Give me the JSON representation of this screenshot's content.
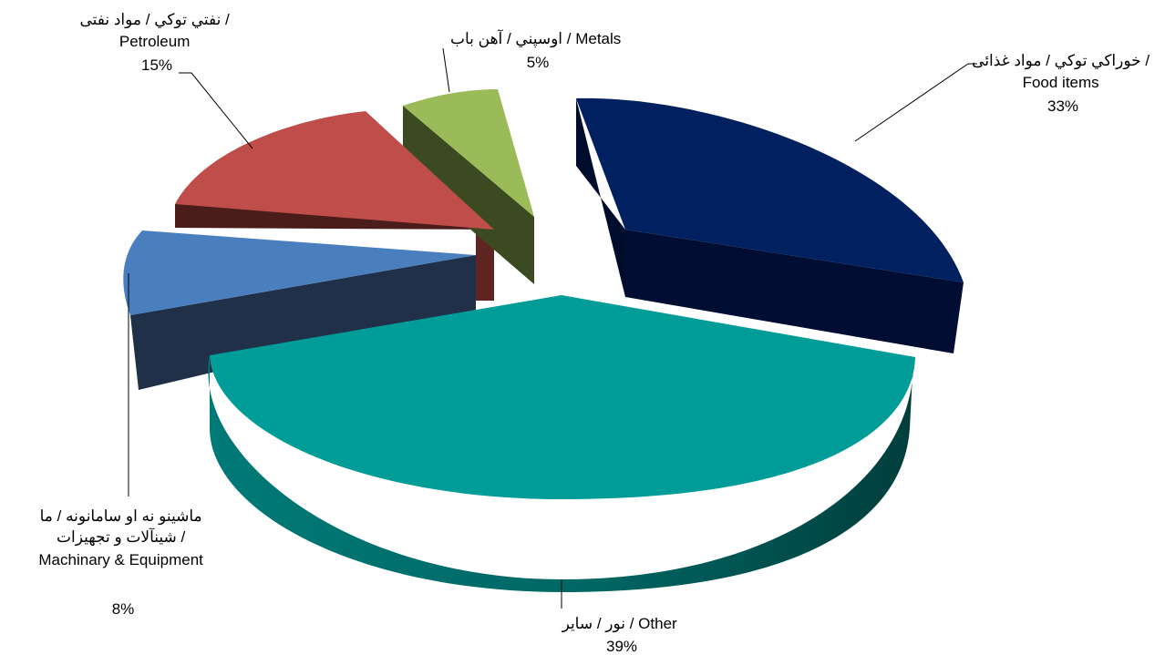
{
  "chart_data": {
    "type": "pie",
    "style": "3d-exploded",
    "slices": [
      {
        "key": "food",
        "value": 33,
        "color": "#00205F",
        "label_lines": [
          "خوراکي توکي / مواد غذائی /",
          "Food items"
        ],
        "pct_text": "33%"
      },
      {
        "key": "other",
        "value": 39,
        "color": "#009C98",
        "label_lines": [
          "نور / سایر / Other"
        ],
        "pct_text": "39%"
      },
      {
        "key": "machinery",
        "value": 8,
        "color": "#4A7FBF",
        "label_lines": [
          "ماشینو نه او سامانونه / ما",
          "شینآلات و تجهیزات /",
          "Machinary &  Equipment"
        ],
        "pct_text": "8%"
      },
      {
        "key": "petroleum",
        "value": 15,
        "color": "#BF4E4A",
        "label_lines": [
          "نفتي توکي / مواد نفتی /",
          "Petroleum"
        ],
        "pct_text": "15%"
      },
      {
        "key": "metals",
        "value": 5,
        "color": "#9BBB59",
        "label_lines": [
          "اوسپني / آهن باب / Metals"
        ],
        "pct_text": "5%"
      }
    ]
  }
}
